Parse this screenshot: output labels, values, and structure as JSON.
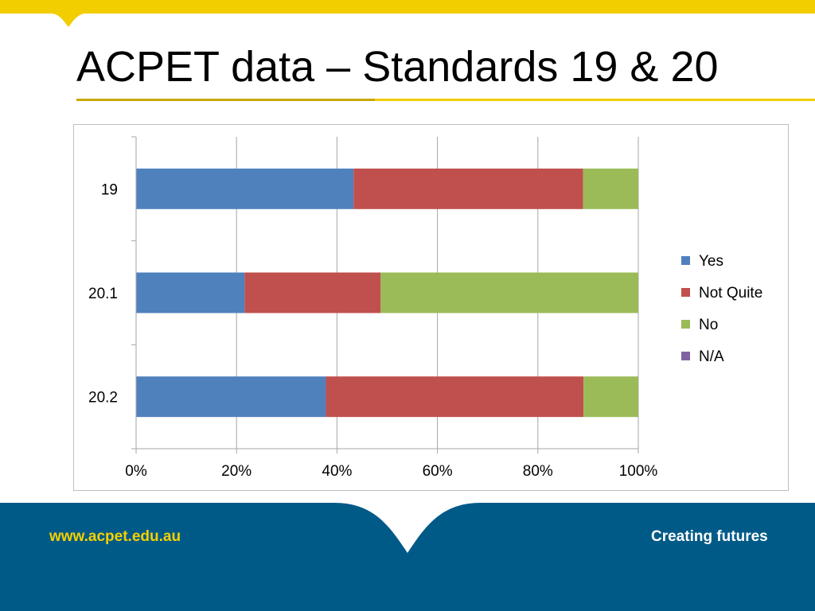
{
  "slide": {
    "title": "ACPET data – Standards 19 & 20"
  },
  "footer": {
    "url": "www.acpet.edu.au",
    "tagline": "Creating futures"
  },
  "colors": {
    "brand_yellow": "#f2cd00",
    "brand_blue": "#005a87",
    "yes": "#4f81bd",
    "not_quite": "#c0504d",
    "no": "#9bbb59",
    "na": "#8064a2"
  },
  "chart_data": {
    "type": "bar",
    "orientation": "horizontal",
    "stacked": "percent",
    "categories": [
      "19",
      "20.1",
      "20.2"
    ],
    "series": [
      {
        "name": "Yes",
        "values": [
          43.3,
          21.6,
          37.8
        ],
        "color": "#4f81bd"
      },
      {
        "name": "Not Quite",
        "values": [
          45.7,
          27.1,
          51.3
        ],
        "color": "#c0504d"
      },
      {
        "name": "No",
        "values": [
          11.0,
          51.3,
          10.9
        ],
        "color": "#9bbb59"
      },
      {
        "name": "N/A",
        "values": [
          0,
          0,
          0
        ],
        "color": "#8064a2"
      }
    ],
    "xlim": [
      0,
      100
    ],
    "x_ticks": [
      "0%",
      "20%",
      "40%",
      "60%",
      "80%",
      "100%"
    ],
    "grid": "vertical",
    "legend": "right",
    "title": "",
    "xlabel": "",
    "ylabel": ""
  }
}
